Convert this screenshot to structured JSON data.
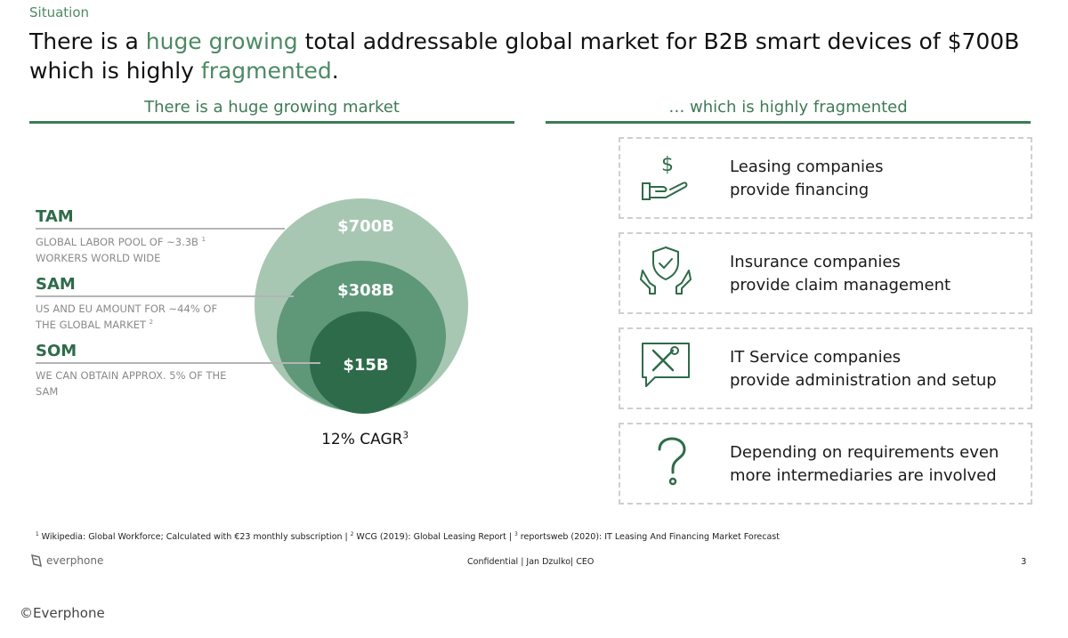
{
  "header": {
    "situation": "Situation",
    "headline_parts": {
      "p1": "There is a ",
      "p2": "huge growing",
      "p3": " total addressable global market for B2B smart devices of $700B",
      "p4": "which is highly ",
      "p5": "fragmented",
      "p6": "."
    }
  },
  "left_section": {
    "title": "There is a huge growing market",
    "tam": {
      "label": "TAM",
      "desc": "GLOBAL LABOR POOL OF ~3.3B",
      "sup": "1",
      "desc2": "WORKERS WORLD WIDE",
      "value": "$700B"
    },
    "sam": {
      "label": "SAM",
      "desc": "US AND EU AMOUNT FOR ~44% OF",
      "desc2": "THE GLOBAL MARKET",
      "sup": "2",
      "value": "$308B"
    },
    "som": {
      "label": "SOM",
      "desc": "WE CAN OBTAIN APPROX. 5% OF THE",
      "desc2": "SAM",
      "value": "$15B"
    },
    "cagr": "12% CAGR",
    "cagr_sup": "3"
  },
  "right_section": {
    "title": "… which is highly fragmented",
    "cards": [
      {
        "icon": "hand-dollar-icon",
        "line1": "Leasing companies",
        "line2": "provide financing"
      },
      {
        "icon": "shield-hands-icon",
        "line1": "Insurance companies",
        "line2": "provide claim management"
      },
      {
        "icon": "tools-chat-icon",
        "line1": "IT Service companies",
        "line2": "provide administration and setup"
      },
      {
        "icon": "question-mark-icon",
        "line1": "Depending on requirements even",
        "line2": "more intermediaries are involved"
      }
    ]
  },
  "footer": {
    "footnote_sup1": "1",
    "footnote1": " Wikipedia: Global Workforce; Calculated with €23 monthly subscription | ",
    "footnote_sup2": "2",
    "footnote2": " WCG (2019): Global Leasing Report | ",
    "footnote_sup3": "3",
    "footnote3": " reportsweb (2020): IT Leasing And Financing Market Forecast",
    "logo_text": "everphone",
    "confidential": "Confidential | Jan Dzulko| CEO",
    "page_number": "3"
  },
  "copyright": "©Everphone",
  "colors": {
    "accent": "#4d8a64",
    "outer_circle": "#a7c7b3",
    "middle_circle": "#5e9878",
    "inner_circle": "#2e6b4a"
  }
}
